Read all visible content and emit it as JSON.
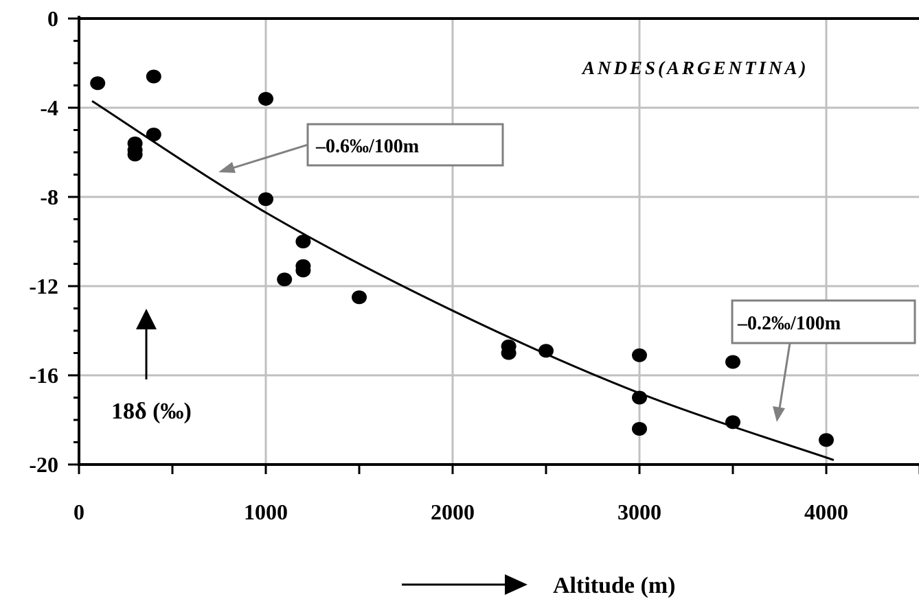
{
  "chart_data": {
    "type": "scatter",
    "title": "ANDES(ARGENTINA)",
    "xlabel": "Altitude (m)",
    "ylabel": "18δ (‰)",
    "xlim": [
      0,
      4500
    ],
    "ylim": [
      -20,
      0
    ],
    "x_ticks": [
      "0",
      "1000",
      "2000",
      "3000",
      "4000"
    ],
    "y_ticks": [
      "0",
      "-4",
      "-8",
      "-12",
      "-16",
      "-20"
    ],
    "grid": true,
    "points": [
      {
        "x": 100,
        "y": -2.9
      },
      {
        "x": 300,
        "y": -5.6
      },
      {
        "x": 300,
        "y": -5.9
      },
      {
        "x": 300,
        "y": -6.1
      },
      {
        "x": 400,
        "y": -2.6
      },
      {
        "x": 400,
        "y": -5.2
      },
      {
        "x": 1000,
        "y": -3.6
      },
      {
        "x": 1000,
        "y": -8.1
      },
      {
        "x": 1100,
        "y": -11.7
      },
      {
        "x": 1200,
        "y": -10.0
      },
      {
        "x": 1200,
        "y": -11.1
      },
      {
        "x": 1200,
        "y": -11.3
      },
      {
        "x": 1500,
        "y": -12.5
      },
      {
        "x": 2300,
        "y": -14.7
      },
      {
        "x": 2300,
        "y": -15.0
      },
      {
        "x": 2500,
        "y": -14.9
      },
      {
        "x": 3000,
        "y": -15.1
      },
      {
        "x": 3000,
        "y": -17.0
      },
      {
        "x": 3000,
        "y": -18.4
      },
      {
        "x": 3500,
        "y": -15.4
      },
      {
        "x": 3500,
        "y": -18.1
      },
      {
        "x": 4000,
        "y": -18.9
      }
    ],
    "trend_curve": {
      "x": [
        70,
        1000,
        2000,
        3000,
        4040
      ],
      "y": [
        -3.7,
        -8.7,
        -13.1,
        -16.8,
        -19.8
      ]
    },
    "annotations": [
      {
        "text": "–0.6‰/100m"
      },
      {
        "text": "–0.2‰/100m"
      }
    ]
  },
  "colors": {
    "grid": "#c0c0c0",
    "annotation_box": "#808080",
    "ink": "#000000"
  }
}
